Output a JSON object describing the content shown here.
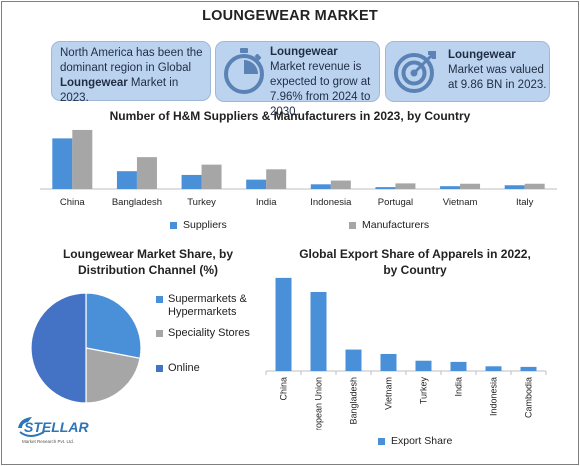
{
  "title": "LOUNGEWEAR MARKET",
  "info_boxes": [
    {
      "pre": "North America has been the dominant region in Global ",
      "bold": "Loungewear",
      "post": " Market in 2023."
    },
    {
      "pre": "",
      "bold": "Loungewear",
      "post": " Market revenue is expected to grow at 7.96% from 2024 to 2030.",
      "icon": "stopwatch-icon"
    },
    {
      "pre": "",
      "bold": "Loungewear",
      "post": " Market was valued at 9.86 BN in 2023.",
      "icon": "target-icon"
    }
  ],
  "colors": {
    "blue": "#4a90d9",
    "gray": "#a6a6a6",
    "dark_blue": "#4472c4",
    "box_bg": "#bcd3ef"
  },
  "logo": {
    "text": "STELLAR",
    "sub": "Market Research Pvt. Ltd."
  },
  "chart_data": [
    {
      "type": "bar",
      "title": "Number of H&M Suppliers & Manufacturers in 2023, by Country",
      "categories": [
        "China",
        "Bangladesh",
        "Turkey",
        "India",
        "Indonesia",
        "Portugal",
        "Vietnam",
        "Italy"
      ],
      "series": [
        {
          "name": "Suppliers",
          "values": [
            270,
            95,
            75,
            50,
            25,
            10,
            15,
            20
          ]
        },
        {
          "name": "Manufacturers",
          "values": [
            315,
            170,
            130,
            105,
            45,
            30,
            28,
            28
          ]
        }
      ],
      "ylim": [
        0,
        320
      ],
      "grid": false,
      "legend": "bottom"
    },
    {
      "type": "pie",
      "title": "Loungewear Market Share, by Distribution Channel (%)",
      "labels": [
        "Supermarkets & Hypermarkets",
        "Speciality Stores",
        "Online"
      ],
      "values": [
        28,
        22,
        50
      ],
      "legend": "right"
    },
    {
      "type": "bar",
      "title": "Global Export Share of Apparels in 2022, by Country",
      "categories": [
        "China",
        "European Union",
        "Bangladesh",
        "Vietnam",
        "Turkey",
        "India",
        "Indonesia",
        "Cambodia"
      ],
      "series": [
        {
          "name": "Export Share",
          "values": [
            31.7,
            26.9,
            7.3,
            5.8,
            3.5,
            3.1,
            1.6,
            1.4
          ]
        }
      ],
      "ylim": [
        0,
        32
      ],
      "grid": false,
      "legend": "bottom"
    }
  ]
}
